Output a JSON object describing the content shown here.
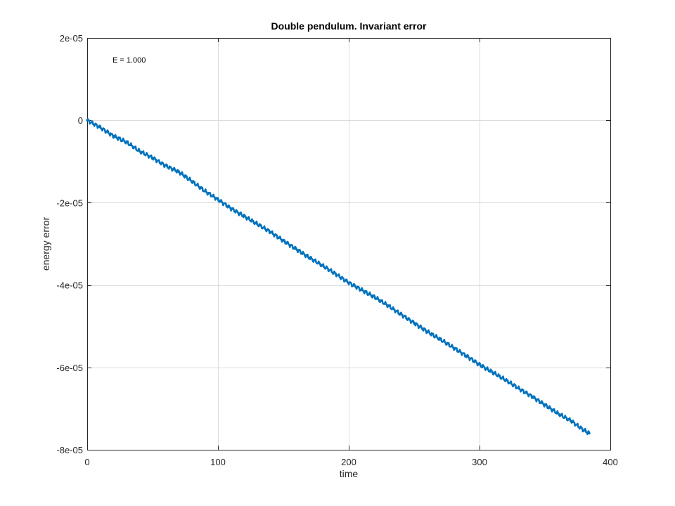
{
  "chart_data": {
    "type": "line",
    "title": "Double pendulum. Invariant error",
    "xlabel": "time",
    "ylabel": "energy error",
    "annotation": "E = 1.000",
    "xlim": [
      0,
      400
    ],
    "ylim": [
      -8e-05,
      2e-05
    ],
    "xticks": [
      0,
      100,
      200,
      300,
      400
    ],
    "xtick_labels": [
      "0",
      "100",
      "200",
      "300",
      "400"
    ],
    "yticks": [
      2e-05,
      0,
      -2e-05,
      -4e-05,
      -6e-05,
      -8e-05
    ],
    "ytick_labels": [
      "2e-05",
      "0",
      "-2e-05",
      "-4e-05",
      "-6e-05",
      "-8e-05"
    ],
    "grid": true,
    "series": [
      {
        "color": "#0072bd",
        "x": [
          0,
          10,
          20,
          30,
          40,
          50,
          60,
          70,
          80,
          90,
          100,
          110,
          120,
          130,
          140,
          150,
          160,
          170,
          180,
          190,
          200,
          210,
          220,
          230,
          240,
          250,
          260,
          270,
          280,
          290,
          300,
          310,
          320,
          330,
          340,
          350,
          360,
          370,
          380,
          384
        ],
        "y": [
          0,
          -1.7e-06,
          -3.8e-06,
          -5.3e-06,
          -7.5e-06,
          -9.1e-06,
          -1.1e-05,
          -1.25e-05,
          -1.48e-05,
          -1.72e-05,
          -1.92e-05,
          -2.14e-05,
          -2.33e-05,
          -2.52e-05,
          -2.71e-05,
          -2.92e-05,
          -3.13e-05,
          -3.34e-05,
          -3.53e-05,
          -3.73e-05,
          -3.94e-05,
          -4.12e-05,
          -4.3e-05,
          -4.5e-05,
          -4.71e-05,
          -4.92e-05,
          -5.13e-05,
          -5.32e-05,
          -5.52e-05,
          -5.72e-05,
          -5.93e-05,
          -6.12e-05,
          -6.31e-05,
          -6.51e-05,
          -6.7e-05,
          -6.91e-05,
          -7.12e-05,
          -7.3e-05,
          -7.53e-05,
          -7.6e-05
        ]
      }
    ]
  }
}
